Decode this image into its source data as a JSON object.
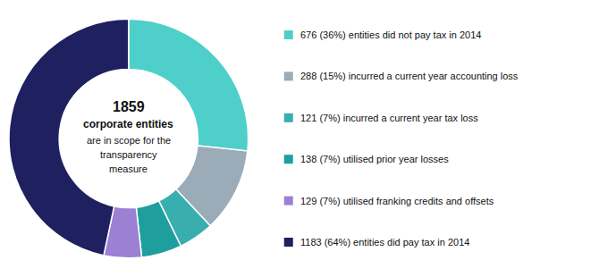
{
  "chart_data": {
    "type": "pie",
    "values": [
      676,
      288,
      121,
      138,
      129,
      1183
    ],
    "colors": [
      "#4ECFCA",
      "#9BABB8",
      "#38AEAE",
      "#1F9E9E",
      "#9B80D4",
      "#1E2060"
    ],
    "center_text": [
      "1859",
      "corporate entities",
      "are in scope for the",
      "transparency",
      "measure"
    ],
    "annotations": [
      "676 (36%) entities did not pay tax in 2014",
      "288 (15%) incurred a current year accounting loss",
      "121 (7%) incurred a current year tax loss",
      "138 (7%) utilised prior year losses",
      "129 (7%) utilised franking credits and offsets",
      "1183 (64%) entities did pay tax in 2014"
    ]
  }
}
